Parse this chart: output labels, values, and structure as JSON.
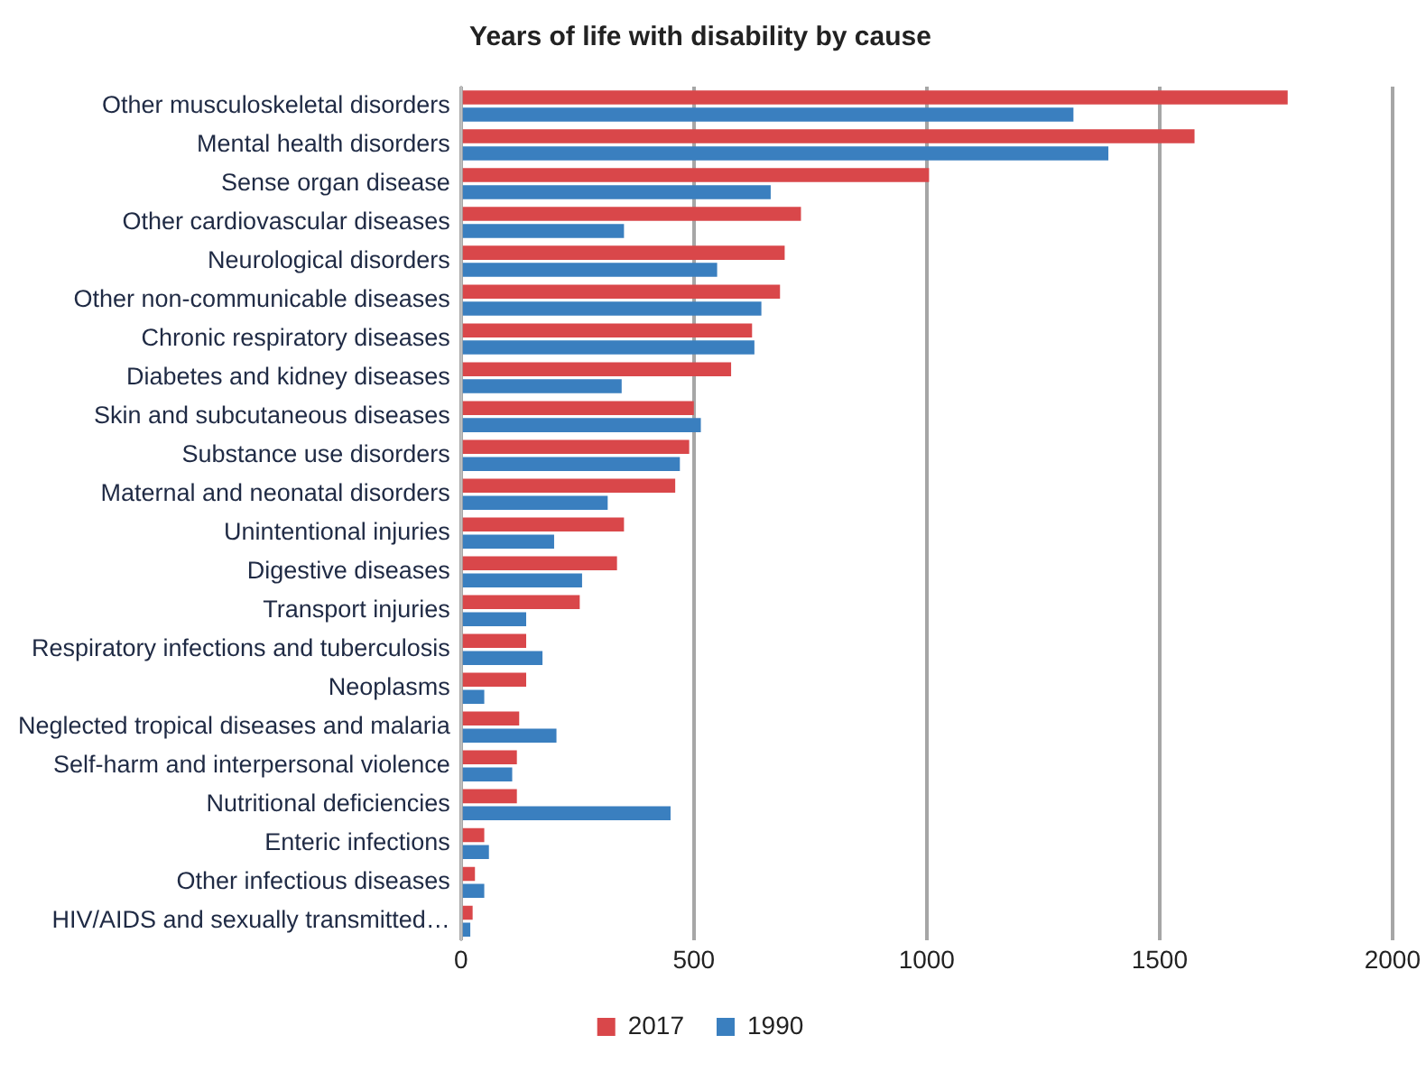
{
  "chart_data": {
    "type": "bar",
    "orientation": "horizontal",
    "title": "Years of life with disability by cause",
    "categories": [
      "Other musculoskeletal disorders",
      "Mental health disorders",
      "Sense organ disease",
      "Other cardiovascular diseases",
      "Neurological disorders",
      "Other non-communicable diseases",
      "Chronic respiratory diseases",
      "Diabetes and kidney diseases",
      "Skin and subcutaneous diseases",
      "Substance use disorders",
      "Maternal and neonatal disorders",
      "Unintentional injuries",
      "Digestive diseases",
      "Transport injuries",
      "Respiratory infections and tuberculosis",
      "Neoplasms",
      "Neglected tropical diseases and malaria",
      "Self-harm and interpersonal violence",
      "Nutritional deficiencies",
      "Enteric infections",
      "Other infectious diseases",
      "HIV/AIDS and sexually transmitted…"
    ],
    "series": [
      {
        "name": "2017",
        "color": "#d9474a",
        "values": [
          1775,
          1575,
          1005,
          730,
          695,
          685,
          625,
          580,
          500,
          490,
          460,
          350,
          335,
          255,
          140,
          140,
          125,
          120,
          120,
          50,
          30,
          25
        ]
      },
      {
        "name": "1990",
        "color": "#3a7fbf",
        "values": [
          1315,
          1390,
          665,
          350,
          550,
          645,
          630,
          345,
          515,
          470,
          315,
          200,
          260,
          140,
          175,
          50,
          205,
          110,
          450,
          60,
          50,
          20
        ]
      }
    ],
    "xlim": [
      0,
      2000
    ],
    "xticks": [
      0,
      500,
      1000,
      1500,
      2000
    ],
    "grid": "x",
    "legend": "bottom"
  }
}
